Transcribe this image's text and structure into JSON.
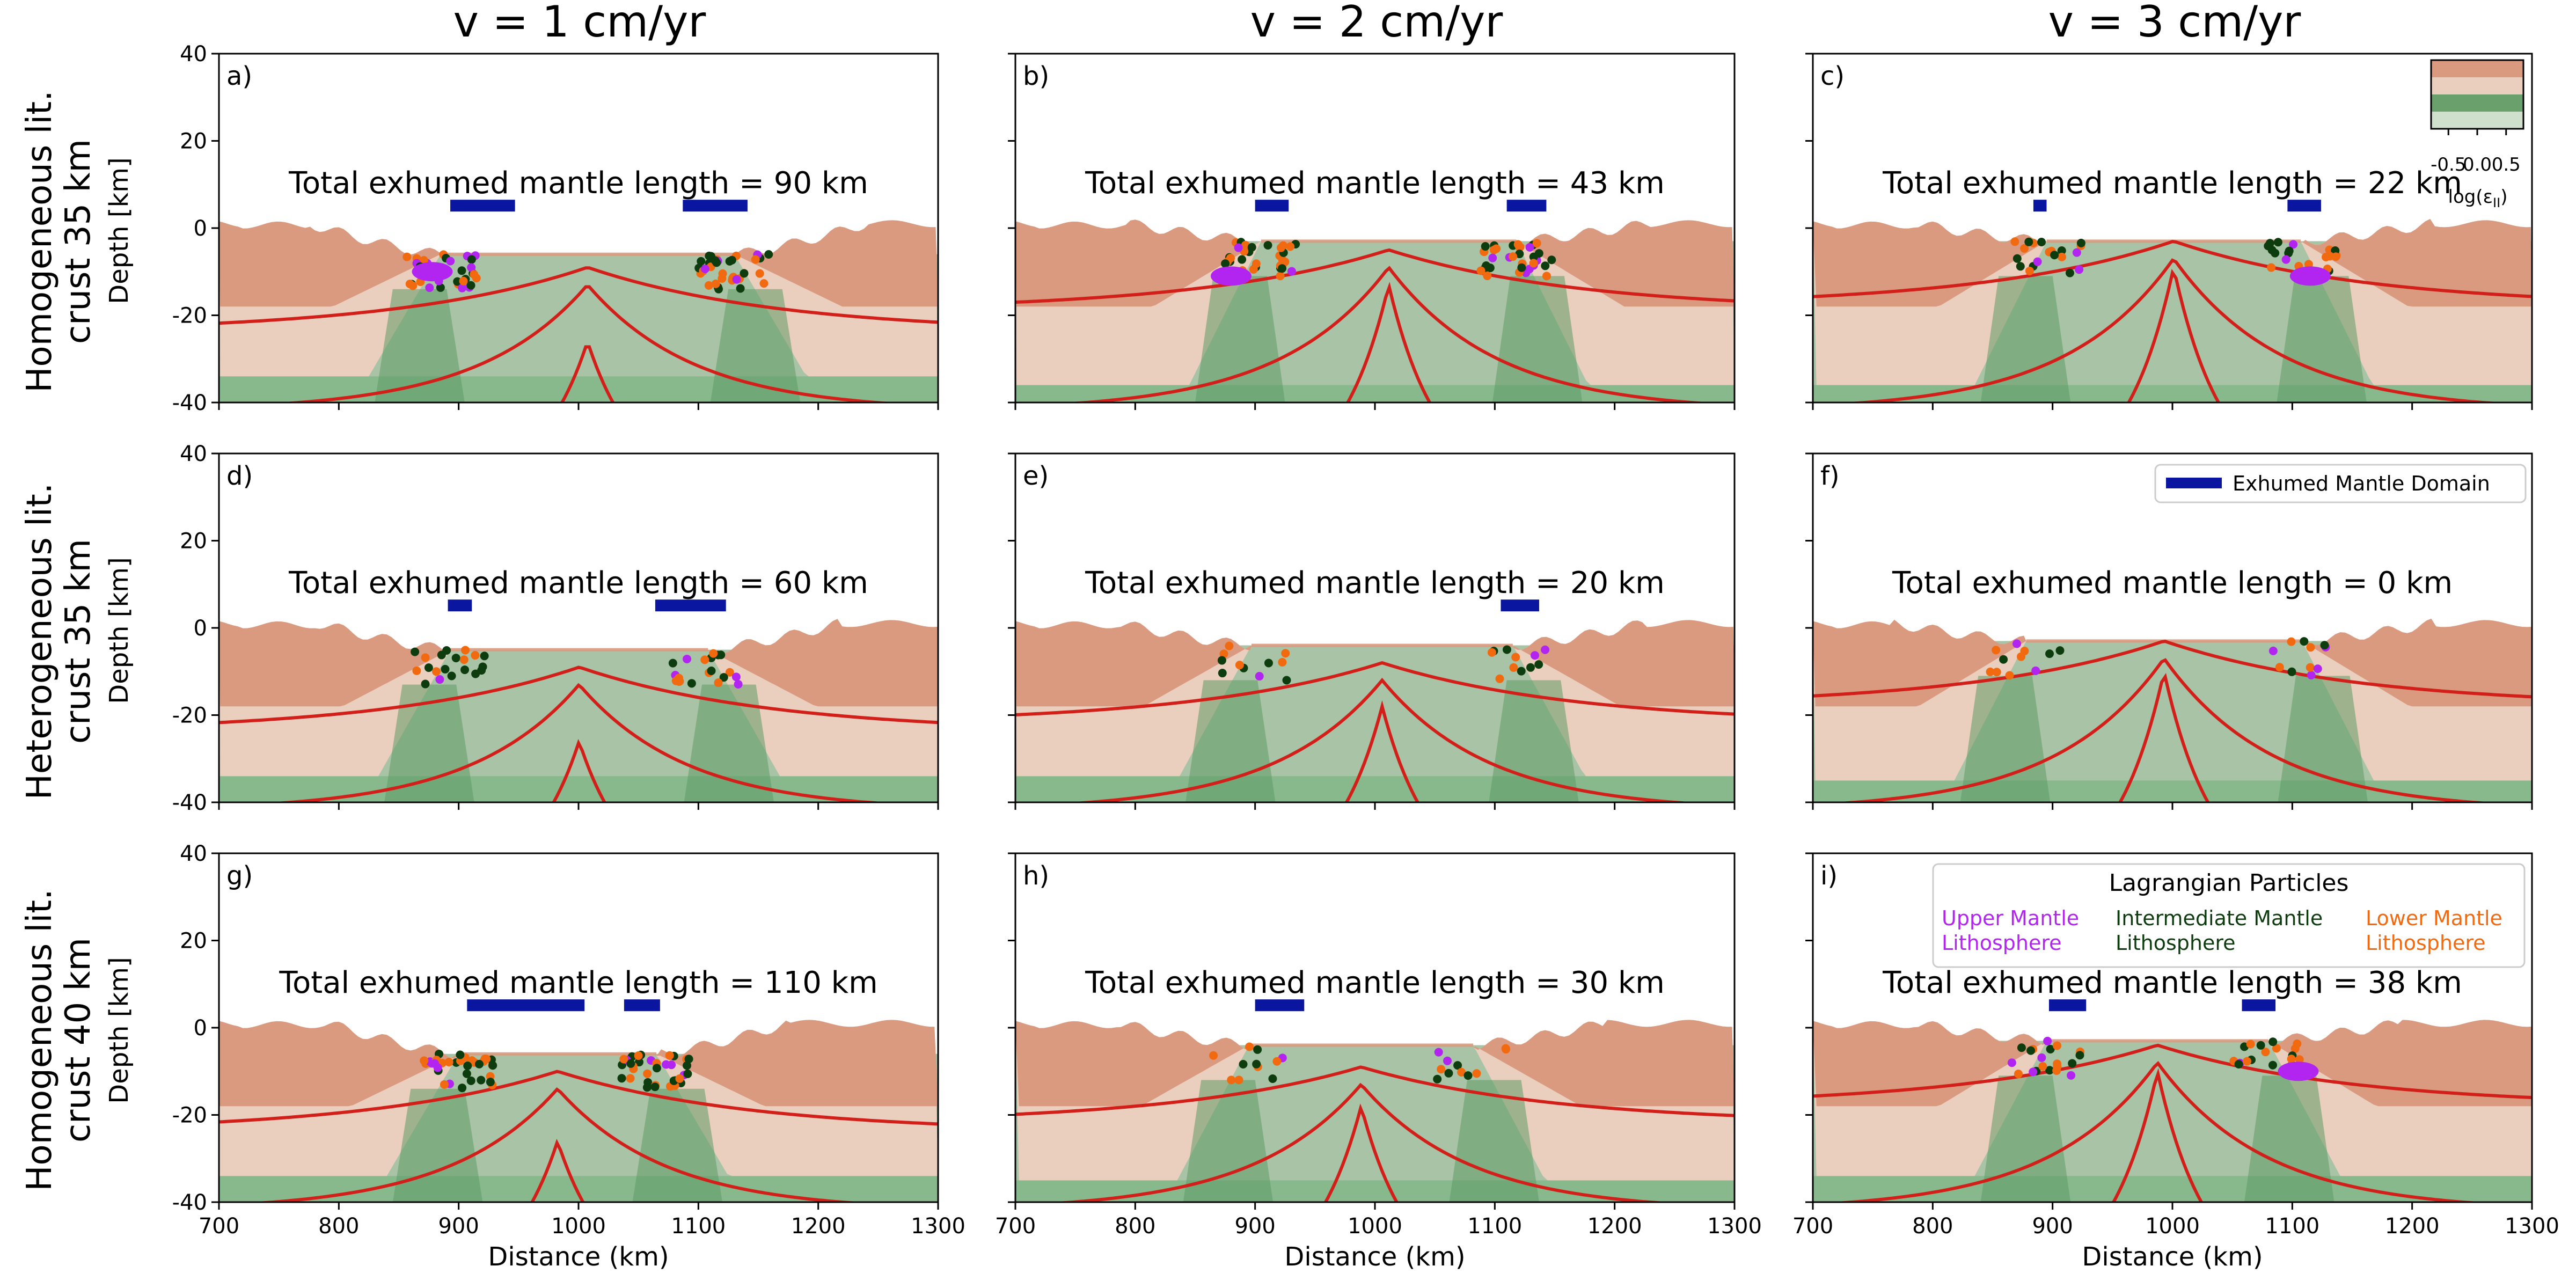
{
  "chart_data": {
    "type": "area",
    "layout": "3x3 grid of geodynamic cross-section panels",
    "column_titles": [
      "v = 1 cm/yr",
      "v = 2 cm/yr",
      "v = 3 cm/yr"
    ],
    "row_titles": [
      [
        "Homogeneous lit.",
        "crust 35 km"
      ],
      [
        "Heterogeneous lit.",
        "crust 35 km"
      ],
      [
        "Homogeneous lit.",
        "crust 40 km"
      ]
    ],
    "xlabel": "Distance (km)",
    "ylabel": "Depth [km]",
    "xlim": [
      700,
      1300
    ],
    "ylim": [
      -40,
      40
    ],
    "x_ticks": [
      700,
      800,
      900,
      1000,
      1100,
      1200,
      1300
    ],
    "y_ticks": [
      -40,
      -20,
      0,
      20,
      40
    ],
    "colors": {
      "upper_crust": "#d99a80",
      "lower_crust": "#ebcfbe",
      "mantle": "#a8c3a5",
      "mantle_dark": "#5f9a66",
      "lower_mantle": "#87b98c",
      "isotherm": "#d31f1a",
      "exhumed_bar": "#0b16a0",
      "upper_mantle_particles": "#b225f0",
      "intermediate_mantle_particles": "#0d3d0f",
      "lower_mantle_particles": "#f26a10"
    },
    "panels": [
      {
        "letter": "a)",
        "label": "Total exhumed mantle length = 90 km",
        "exhumed_km": 90,
        "exhumed_domains": [
          [
            893,
            947
          ],
          [
            1087,
            1141
          ]
        ],
        "inner_edges": [
          885,
          1130
        ],
        "basin_depth": -6,
        "moho_depth": -24,
        "lower_crust_base": -34,
        "apex_depth": -9,
        "deep_apex": -26,
        "particles": "dense",
        "upper_blob": [
          878,
          -10
        ]
      },
      {
        "letter": "b)",
        "label": "Total exhumed mantle length = 43 km",
        "exhumed_km": 43,
        "exhumed_domains": [
          [
            900,
            928
          ],
          [
            1110,
            1143
          ]
        ],
        "inner_edges": [
          905,
          1118
        ],
        "basin_depth": -3,
        "moho_depth": -19,
        "lower_crust_base": -36,
        "apex_depth": -5,
        "deep_apex": -13,
        "particles": "dense",
        "upper_blob": [
          880,
          -11
        ]
      },
      {
        "letter": "c)",
        "label": "Total exhumed mantle length = 22 km",
        "exhumed_km": 22,
        "exhumed_domains": [
          [
            884,
            895
          ],
          [
            1096,
            1124
          ]
        ],
        "inner_edges": [
          895,
          1107
        ],
        "basin_depth": -3,
        "moho_depth": -18,
        "lower_crust_base": -36,
        "apex_depth": -3,
        "deep_apex": -9,
        "particles": "medium",
        "upper_blob": [
          1115,
          -11
        ]
      },
      {
        "letter": "d)",
        "label": "Total exhumed mantle length = 60 km",
        "exhumed_km": 60,
        "exhumed_domains": [
          [
            891,
            911
          ],
          [
            1064,
            1123
          ]
        ],
        "inner_edges": [
          893,
          1108
        ],
        "basin_depth": -5,
        "moho_depth": -24,
        "lower_crust_base": -34,
        "apex_depth": -9,
        "deep_apex": -26,
        "particles": "medium",
        "upper_blob": null
      },
      {
        "letter": "e)",
        "label": "Total exhumed mantle length = 20 km",
        "exhumed_km": 20,
        "exhumed_domains": [
          [
            1105,
            1137
          ]
        ],
        "inner_edges": [
          897,
          1115
        ],
        "basin_depth": -4,
        "moho_depth": -22,
        "lower_crust_base": -34,
        "apex_depth": -8,
        "deep_apex": -18,
        "particles": "light",
        "upper_blob": null
      },
      {
        "letter": "f)",
        "label": "Total exhumed mantle length = 0 km",
        "exhumed_km": 0,
        "exhumed_domains": [],
        "inner_edges": [
          878,
          1108
        ],
        "basin_depth": -3,
        "moho_depth": -18,
        "lower_crust_base": -35,
        "apex_depth": -3,
        "deep_apex": -10,
        "particles": "light",
        "upper_blob": null
      },
      {
        "letter": "g)",
        "label": "Total exhumed mantle length = 110 km",
        "exhumed_km": 110,
        "exhumed_domains": [
          [
            907,
            1005
          ],
          [
            1038,
            1068
          ]
        ],
        "inner_edges": [
          900,
          1065
        ],
        "basin_depth": -6,
        "moho_depth": -24,
        "lower_crust_base": -34,
        "apex_depth": -10,
        "deep_apex": -26,
        "particles": "dense",
        "upper_blob": null
      },
      {
        "letter": "h)",
        "label": "Total exhumed mantle length = 30 km",
        "exhumed_km": 30,
        "exhumed_domains": [
          [
            900,
            941
          ]
        ],
        "inner_edges": [
          895,
          1082
        ],
        "basin_depth": -4,
        "moho_depth": -22,
        "lower_crust_base": -35,
        "apex_depth": -9,
        "deep_apex": -18,
        "particles": "light",
        "upper_blob": null
      },
      {
        "letter": "i)",
        "label": "Total exhumed mantle length = 38 km",
        "exhumed_km": 38,
        "exhumed_domains": [
          [
            897,
            928
          ],
          [
            1058,
            1086
          ]
        ],
        "inner_edges": [
          895,
          1080
        ],
        "basin_depth": -3,
        "moho_depth": -18,
        "lower_crust_base": -34,
        "apex_depth": -4,
        "deep_apex": -10,
        "particles": "medium",
        "upper_blob": [
          1105,
          -10
        ]
      }
    ],
    "exhumed_legend": "Exhumed Mantle Domain",
    "particle_legend": {
      "title": "Lagrangian Particles",
      "items": [
        {
          "line1": "Upper Mantle",
          "line2": "Lithosphere",
          "color": "#b225f0"
        },
        {
          "line1": "Intermediate Mantle",
          "line2": "Lithosphere",
          "color": "#0d3d0f"
        },
        {
          "line1": "Lower Mantle",
          "line2": "Lithosphere",
          "color": "#f26a10"
        }
      ]
    },
    "colorbar": {
      "ticks": [
        "-0.5",
        "0.0",
        "0.5"
      ],
      "tick_values": [
        -0.5,
        0.0,
        0.5
      ],
      "range": [
        -0.8,
        0.8
      ],
      "label": "log(ε",
      "label_sub": "II",
      "label_close": ")"
    }
  }
}
